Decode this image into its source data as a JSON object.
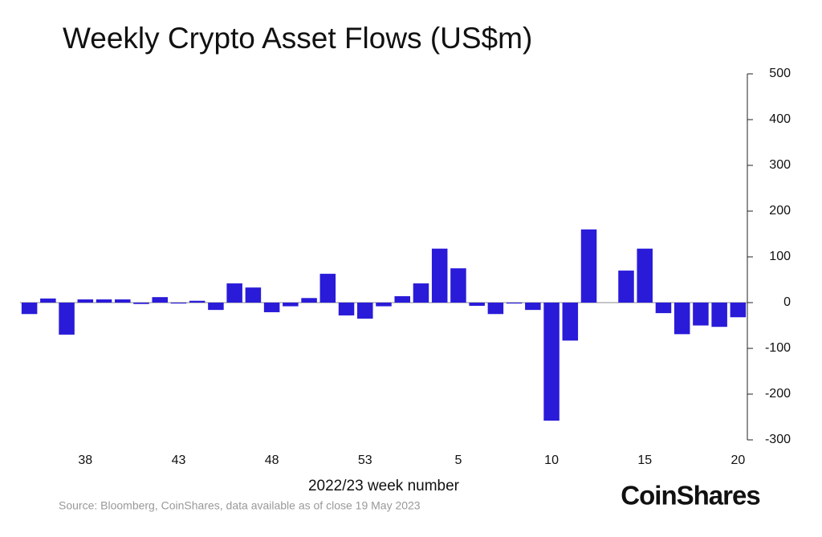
{
  "chart_data": {
    "type": "bar",
    "title": "Weekly Crypto Asset Flows (US$m)",
    "x_label": "2022/23 week number",
    "source": "Source: Bloomberg, CoinShares, data available as of close 19 May 2023",
    "brand": "CoinShares",
    "categories": [
      null,
      null,
      null,
      "38",
      null,
      null,
      null,
      null,
      "43",
      null,
      null,
      null,
      null,
      "48",
      null,
      null,
      null,
      null,
      "53",
      null,
      null,
      null,
      null,
      "5",
      null,
      null,
      null,
      null,
      "10",
      null,
      null,
      null,
      null,
      "15",
      null,
      null,
      null,
      null,
      "20"
    ],
    "values": [
      -25,
      9,
      -70,
      7,
      7,
      7,
      -3,
      12,
      -2,
      4,
      -16,
      42,
      33,
      -21,
      -8,
      10,
      63,
      -28,
      -35,
      -8,
      14,
      42,
      118,
      75,
      -7,
      -25,
      -2,
      -16,
      -258,
      -83,
      160,
      0,
      70,
      118,
      -23,
      -69,
      -50,
      -53,
      -32
    ],
    "color": "#2a1bd9",
    "ylim": [
      -300,
      500
    ],
    "yticks": [
      -300,
      -200,
      -100,
      0,
      100,
      200,
      300,
      400,
      500
    ]
  }
}
